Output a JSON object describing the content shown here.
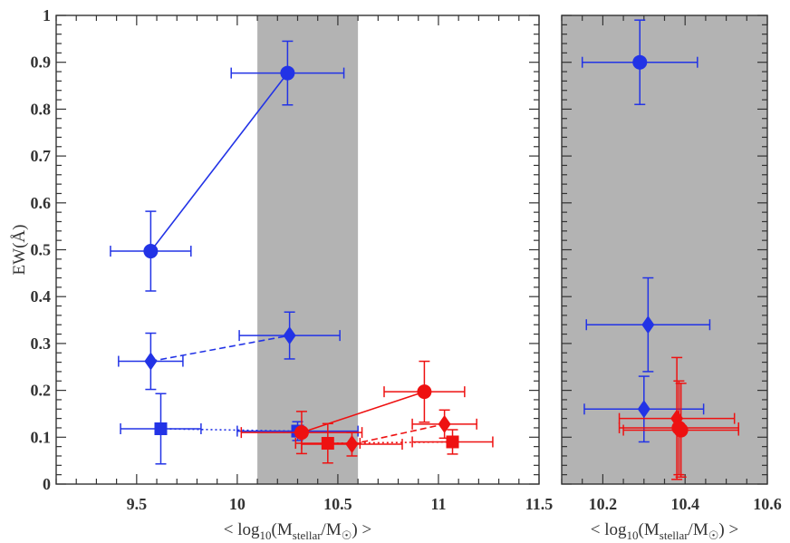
{
  "chart_data": [
    {
      "type": "scatter",
      "panel": "left",
      "xlabel": "< log10(Mstellar/M☉) >",
      "ylabel": "EW(Å)",
      "xlim": [
        9.1,
        11.5
      ],
      "ylim": [
        0,
        1
      ],
      "x_ticks": [
        "9.5",
        "10",
        "10.5",
        "11",
        "11.5"
      ],
      "y_ticks": [
        "0",
        "0.1",
        "0.2",
        "0.3",
        "0.4",
        "0.5",
        "0.6",
        "0.7",
        "0.8",
        "0.9",
        "1"
      ],
      "shaded_x_range": [
        10.1,
        10.6
      ],
      "shade_color": "#b3b3b3",
      "series": [
        {
          "name": "blue-circle",
          "marker": "circle",
          "color": "#2233e6",
          "line": "solid",
          "points": [
            {
              "x": 9.57,
              "y": 0.497,
              "xerr": 0.2,
              "yerr": 0.085
            },
            {
              "x": 10.25,
              "y": 0.877,
              "xerr": 0.28,
              "yerr": 0.068
            }
          ]
        },
        {
          "name": "blue-diamond",
          "marker": "diamond",
          "color": "#2233e6",
          "line": "dashed",
          "points": [
            {
              "x": 9.57,
              "y": 0.262,
              "xerr": 0.16,
              "yerr": 0.06
            },
            {
              "x": 10.26,
              "y": 0.317,
              "xerr": 0.25,
              "yerr": 0.05
            }
          ]
        },
        {
          "name": "blue-square",
          "marker": "square",
          "color": "#2233e6",
          "line": "dotted",
          "points": [
            {
              "x": 9.62,
              "y": 0.118,
              "xerr": 0.2,
              "yerr": 0.075
            },
            {
              "x": 10.3,
              "y": 0.113,
              "xerr": 0.3,
              "yerr": 0.02
            }
          ]
        },
        {
          "name": "red-circle",
          "marker": "circle",
          "color": "#ee1111",
          "line": "solid",
          "points": [
            {
              "x": 10.32,
              "y": 0.11,
              "xerr": 0.3,
              "yerr": 0.045
            },
            {
              "x": 10.93,
              "y": 0.197,
              "xerr": 0.2,
              "yerr": 0.065
            }
          ]
        },
        {
          "name": "red-diamond",
          "marker": "diamond",
          "color": "#ee1111",
          "line": "dashed",
          "points": [
            {
              "x": 10.57,
              "y": 0.085,
              "xerr": 0.25,
              "yerr": 0.025
            },
            {
              "x": 11.03,
              "y": 0.128,
              "xerr": 0.16,
              "yerr": 0.03
            }
          ]
        },
        {
          "name": "red-square",
          "marker": "square",
          "color": "#ee1111",
          "line": "dotted",
          "points": [
            {
              "x": 10.45,
              "y": 0.087,
              "xerr": 0.16,
              "yerr": 0.042
            },
            {
              "x": 11.07,
              "y": 0.09,
              "xerr": 0.2,
              "yerr": 0.026
            }
          ]
        }
      ]
    },
    {
      "type": "scatter",
      "panel": "right",
      "xlabel": "< log10(Mstellar/M☉) >",
      "ylabel": "",
      "xlim": [
        10.1,
        10.6
      ],
      "ylim": [
        0,
        1
      ],
      "x_ticks": [
        "10.2",
        "10.4",
        "10.6"
      ],
      "shaded_x_range": [
        10.1,
        10.6
      ],
      "shade_color": "#b3b3b3",
      "series": [
        {
          "name": "blue-circle",
          "marker": "circle",
          "color": "#2233e6",
          "points": [
            {
              "x": 10.29,
              "y": 0.9,
              "xerr": 0.14,
              "yerr": 0.09
            }
          ]
        },
        {
          "name": "blue-diamond",
          "marker": "diamond",
          "color": "#2233e6",
          "points": [
            {
              "x": 10.31,
              "y": 0.34,
              "xerr": 0.15,
              "yerr": 0.1
            }
          ]
        },
        {
          "name": "blue-square",
          "marker": "diamond",
          "color": "#2233e6",
          "points": [
            {
              "x": 10.3,
              "y": 0.16,
              "xerr": 0.145,
              "yerr": 0.07
            }
          ]
        },
        {
          "name": "red-diamond",
          "marker": "diamond",
          "color": "#ee1111",
          "points": [
            {
              "x": 10.38,
              "y": 0.14,
              "xerr": 0.14,
              "yerr": 0.13
            }
          ]
        },
        {
          "name": "red-circle",
          "marker": "circle",
          "color": "#ee1111",
          "points": [
            {
              "x": 10.39,
              "y": 0.115,
              "xerr": 0.14,
              "yerr": 0.1
            }
          ]
        },
        {
          "name": "red-square",
          "marker": "circle",
          "color": "#ee1111",
          "points": [
            {
              "x": 10.385,
              "y": 0.12,
              "xerr": 0.145,
              "yerr": 0.1
            }
          ]
        }
      ]
    }
  ]
}
